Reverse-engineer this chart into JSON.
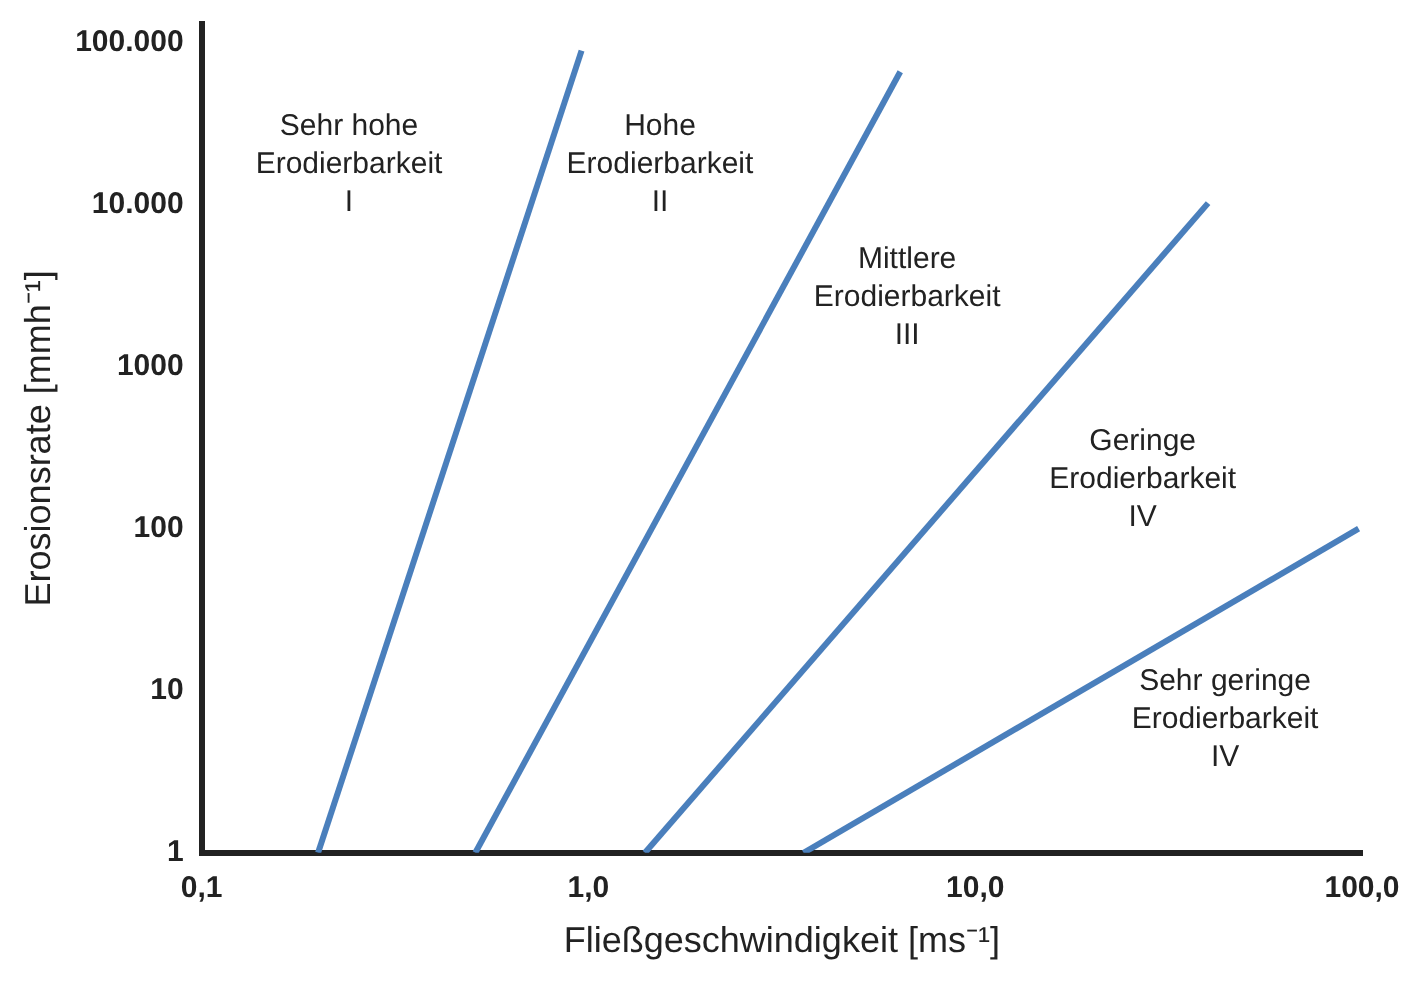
{
  "chart_data": {
    "type": "line",
    "xlabel": "Fließgeschwindigkeit [ms⁻¹]",
    "ylabel": "Erosionsrate [mmh⁻¹]",
    "log": "xy",
    "grid": false,
    "legend": false,
    "marker": "none",
    "line_style": "solid",
    "xlim": [
      0.1,
      100
    ],
    "ylim": [
      1,
      130000
    ],
    "xticks": [
      {
        "value": 0.1,
        "label": "0,1"
      },
      {
        "value": 1,
        "label": "1,0"
      },
      {
        "value": 10,
        "label": "10,0"
      },
      {
        "value": 100,
        "label": "100,0"
      }
    ],
    "yticks": [
      1,
      10,
      100,
      1000,
      {
        "value": 10000,
        "label": "10.000"
      },
      {
        "value": 100000,
        "label": "100.000"
      }
    ],
    "series": [
      {
        "color": "#4a7fbc",
        "x": [
          0.2,
          0.96
        ],
        "values": [
          1,
          89000
        ]
      },
      {
        "color": "#4a7fbc",
        "x": [
          0.51,
          6.4
        ],
        "values": [
          1,
          66000
        ]
      },
      {
        "color": "#4a7fbc",
        "x": [
          1.4,
          40
        ],
        "values": [
          1,
          10200
        ]
      },
      {
        "color": "#4a7fbc",
        "x": [
          3.6,
          98
        ],
        "values": [
          1,
          100
        ]
      }
    ],
    "annotations": [
      "Sehr hohe\nErodierbarkeit\nI",
      "Hohe\nErodierbarkeit\nII",
      "Mittlere\nErodierbarkeit\nIII",
      "Geringe\nErodierbarkeit\nIV",
      "Sehr geringe\nErodierbarkeit\nIV"
    ]
  }
}
